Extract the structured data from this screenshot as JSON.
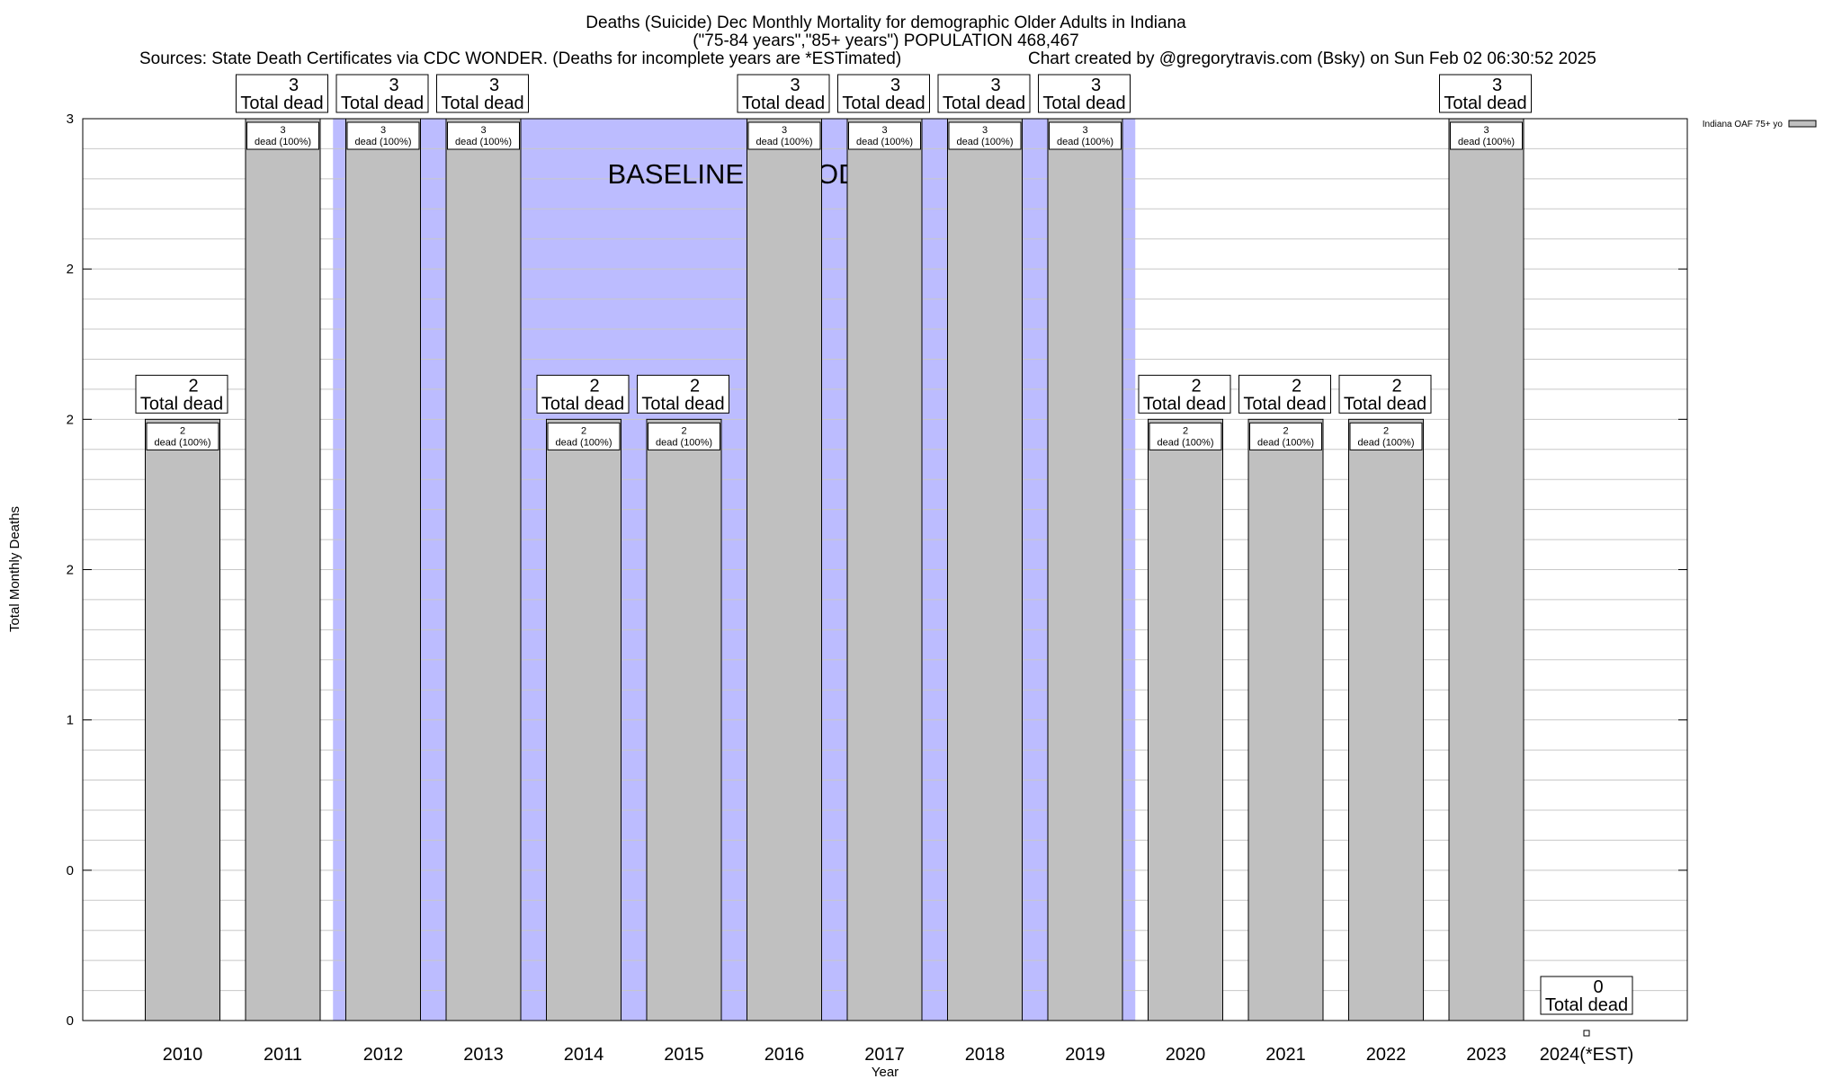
{
  "chart_data": {
    "type": "bar",
    "title": "Deaths (Suicide) Dec Monthly Mortality for demographic Older Adults in Indiana",
    "subtitle": "(\"75-84 years\",\"85+ years\") POPULATION 468,467",
    "sources": "Sources: State Death Certificates via CDC WONDER. (Deaths for incomplete years are *ESTimated)",
    "credit": "Chart created by @gregorytravis.com (Bsky) on Sun Feb 02 06:30:52 2025",
    "xlabel": "Year",
    "ylabel": "Total Monthly Deaths",
    "ylim": [
      0,
      3
    ],
    "ytick_values": [
      0,
      0.5,
      1,
      1.5,
      2,
      2.5,
      3
    ],
    "ytick_labels": [
      "0",
      "0",
      "1",
      "2",
      "2",
      "2",
      "3"
    ],
    "grid": true,
    "legend": {
      "label": "Indiana OAF 75+ yo",
      "position": "top-right"
    },
    "baseline": {
      "label": "BASELINE PERIOD",
      "start": "2012",
      "end": "2019"
    },
    "categories": [
      "2010",
      "2011",
      "2012",
      "2013",
      "2014",
      "2015",
      "2016",
      "2017",
      "2018",
      "2019",
      "2020",
      "2021",
      "2022",
      "2023",
      "2024(*EST)"
    ],
    "series": [
      {
        "name": "Indiana OAF 75+ yo",
        "values": [
          2,
          3,
          3,
          3,
          2,
          2,
          3,
          3,
          3,
          3,
          2,
          2,
          2,
          3,
          0
        ]
      }
    ],
    "inner_labels": [
      "2\ndead (100%)",
      "3\ndead (100%)",
      "3\ndead (100%)",
      "3\ndead (100%)",
      "2\ndead (100%)",
      "2\ndead (100%)",
      "3\ndead (100%)",
      "3\ndead (100%)",
      "3\ndead (100%)",
      "3\ndead (100%)",
      "2\ndead (100%)",
      "2\ndead (100%)",
      "2\ndead (100%)",
      "3\ndead (100%)",
      ""
    ],
    "total_labels": [
      "2\nTotal dead",
      "3\nTotal dead",
      "3\nTotal dead",
      "3\nTotal dead",
      "2\nTotal dead",
      "2\nTotal dead",
      "3\nTotal dead",
      "3\nTotal dead",
      "3\nTotal dead",
      "3\nTotal dead",
      "2\nTotal dead",
      "2\nTotal dead",
      "2\nTotal dead",
      "3\nTotal dead",
      "0\nTotal dead"
    ],
    "colors": {
      "bar": "#c0c0c0",
      "baseline": "#bcbcff",
      "grid": "#c8c8c8"
    }
  }
}
